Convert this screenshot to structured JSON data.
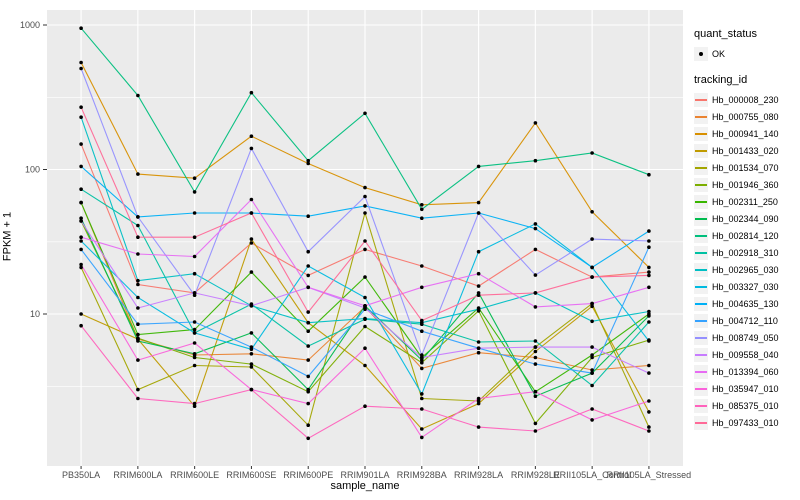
{
  "figure": {
    "panel_bg": "#EBEBEB",
    "grid_color": "#FFFFFF",
    "axis_text_color": "#4D4D4D",
    "tick_color": "#333333",
    "point_color": "#000000",
    "legend_key_bg": "#F2F2F2"
  },
  "legend": {
    "quant_status_title": "quant_status",
    "quant_status_ok_label": "OK",
    "tracking_title": "tracking_id"
  },
  "chart_data": {
    "type": "line",
    "title": "",
    "xlabel": "sample_name",
    "ylabel": "FPKM + 1",
    "y_scale": "log10",
    "grid": true,
    "legend_position": "right",
    "ylim": [
      0.9,
      1300
    ],
    "y_ticks": [
      10,
      100,
      1000
    ],
    "y_minor_ticks": [
      3.16,
      31.6,
      316
    ],
    "categories": [
      "PB350LA",
      "RRIM600LA",
      "RRIM600LE",
      "RRIM600SE",
      "RRIM600PE",
      "RRIM901LA",
      "RRIM928BA",
      "RRIM928LA",
      "RRIM928LE",
      "RRII105LA_Control",
      "RRII105LA_Stressed"
    ],
    "series": [
      {
        "name": "Hb_000008_230",
        "color": "#F8766D",
        "values": [
          150,
          16,
          14,
          31,
          18.5,
          28,
          21.5,
          15.6,
          28,
          18,
          19.5
        ]
      },
      {
        "name": "Hb_000755_080",
        "color": "#EA8331",
        "values": [
          59,
          6.7,
          5.2,
          5.3,
          4.8,
          11.2,
          4.2,
          5.4,
          5.0,
          4.1,
          4.4
        ]
      },
      {
        "name": "Hb_000941_140",
        "color": "#D89000",
        "values": [
          550,
          93,
          87,
          170,
          110,
          75,
          57,
          59,
          210,
          51,
          21
        ]
      },
      {
        "name": "Hb_001433_020",
        "color": "#C09B00",
        "values": [
          10,
          6.7,
          2.3,
          33,
          8.7,
          4.4,
          1.6,
          2.4,
          5.5,
          11.3,
          2.1
        ]
      },
      {
        "name": "Hb_001534_070",
        "color": "#A3A500",
        "values": [
          21,
          3.0,
          4.4,
          4.3,
          1.7,
          50,
          2.6,
          2.5,
          5.9,
          11.8,
          1.65
        ]
      },
      {
        "name": "Hb_001946_360",
        "color": "#7CAE00",
        "values": [
          44,
          6.8,
          5.0,
          4.5,
          2.9,
          8.2,
          4.6,
          10.5,
          1.75,
          5.0,
          6.6
        ]
      },
      {
        "name": "Hb_002311_250",
        "color": "#39B600",
        "values": [
          59,
          7.2,
          7.8,
          19.5,
          7.6,
          18,
          5.0,
          11.0,
          2.9,
          5.2,
          10.0
        ]
      },
      {
        "name": "Hb_002344_090",
        "color": "#00BB4E",
        "values": [
          46,
          6.5,
          5.3,
          7.4,
          3.0,
          11.4,
          4.8,
          14.0,
          2.7,
          3.9,
          9.7
        ]
      },
      {
        "name": "Hb_002814_120",
        "color": "#00BF7D",
        "values": [
          950,
          325,
          70,
          340,
          115,
          245,
          53,
          105,
          115,
          130,
          92
        ]
      },
      {
        "name": "Hb_002918_310",
        "color": "#00C1A3",
        "values": [
          73,
          41,
          7.4,
          11.7,
          6.0,
          9.2,
          8.5,
          6.4,
          6.5,
          3.2,
          8.8
        ]
      },
      {
        "name": "Hb_002965_030",
        "color": "#00BFC4",
        "values": [
          230,
          17,
          19,
          11.4,
          8.7,
          9.3,
          8.7,
          10.8,
          14,
          8.9,
          10.4
        ]
      },
      {
        "name": "Hb_003327_030",
        "color": "#00BAE0",
        "values": [
          32,
          13,
          7.4,
          5.7,
          21.5,
          13,
          2.8,
          27,
          42,
          21,
          6.5
        ]
      },
      {
        "name": "Hb_004635_130",
        "color": "#00B0F6",
        "values": [
          105,
          47,
          50,
          50,
          47.5,
          56,
          46,
          50,
          39,
          21,
          37.5
        ]
      },
      {
        "name": "Hb_004712_110",
        "color": "#35A2FF",
        "values": [
          28,
          8.5,
          8.8,
          5.9,
          3.7,
          10.8,
          7.6,
          5.8,
          4.5,
          3.9,
          29
        ]
      },
      {
        "name": "Hb_008749_050",
        "color": "#9590FF",
        "values": [
          500,
          47,
          13.5,
          140,
          27,
          65,
          5.2,
          50,
          18.6,
          33,
          32
        ]
      },
      {
        "name": "Hb_009558_040",
        "color": "#C77CFF",
        "values": [
          44,
          11,
          14,
          11.4,
          15.3,
          11.0,
          5.0,
          5.8,
          5.9,
          5.9,
          3.9
        ]
      },
      {
        "name": "Hb_013394_060",
        "color": "#E76BF3",
        "values": [
          34,
          26,
          25,
          62,
          15.3,
          11.4,
          15.3,
          19,
          11.2,
          11.8,
          15.3
        ]
      },
      {
        "name": "Hb_035947_010",
        "color": "#FA62DB",
        "values": [
          22,
          4.8,
          6.3,
          3.0,
          2.4,
          5.8,
          1.4,
          2.6,
          2.9,
          1.85,
          2.5
        ]
      },
      {
        "name": "Hb_085375_010",
        "color": "#FF62BC",
        "values": [
          8.3,
          2.6,
          2.4,
          3.0,
          1.38,
          2.3,
          2.2,
          1.65,
          1.55,
          2.2,
          1.55
        ]
      },
      {
        "name": "Hb_097433_010",
        "color": "#FF6A98",
        "values": [
          270,
          34,
          34,
          50,
          10.3,
          32,
          9.0,
          13.5,
          14,
          18,
          18.5
        ]
      }
    ]
  }
}
